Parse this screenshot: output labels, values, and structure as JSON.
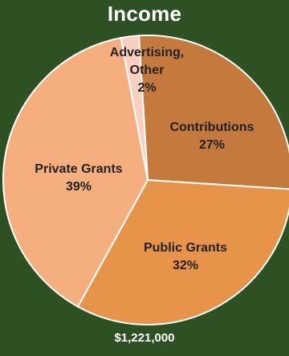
{
  "chart_data": {
    "type": "pie",
    "title": "Income",
    "total_label": "$1,221,000",
    "slices": [
      {
        "label_lines": [
          "Contributions"
        ],
        "pct_label": "27%",
        "value": 27,
        "color": "#c47a3c"
      },
      {
        "label_lines": [
          "Public Grants"
        ],
        "pct_label": "32%",
        "value": 32,
        "color": "#e8934a"
      },
      {
        "label_lines": [
          "Private Grants"
        ],
        "pct_label": "39%",
        "value": 39,
        "color": "#f5ae7e"
      },
      {
        "label_lines": [
          "Advertising,",
          "Other"
        ],
        "pct_label": "2%",
        "value": 2,
        "color": "#f9cfc0"
      }
    ]
  }
}
